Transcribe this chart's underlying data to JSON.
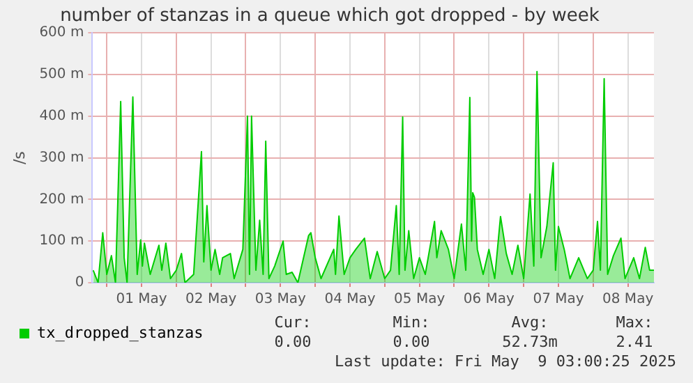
{
  "chart_data": {
    "type": "area",
    "title": "number of stanzas in a queue which got dropped - by week",
    "ylabel": "/s",
    "x": [
      "2025-04-30T19:18",
      "2025-04-30T21:00",
      "2025-04-30T22:36",
      "2025-05-01T00:00",
      "2025-05-01T01:36",
      "2025-05-01T03:00",
      "2025-05-01T04:48",
      "2025-05-01T06:00",
      "2025-05-01T07:00",
      "2025-05-01T09:00",
      "2025-05-01T10:30",
      "2025-05-01T11:42",
      "2025-05-01T12:18",
      "2025-05-01T13:00",
      "2025-05-01T15:00",
      "2025-05-01T18:00",
      "2025-05-01T19:00",
      "2025-05-01T20:24",
      "2025-05-01T22:00",
      "2025-05-02T00:00",
      "2025-05-02T01:48",
      "2025-05-02T03:00",
      "2025-05-02T06:00",
      "2025-05-02T08:42",
      "2025-05-02T09:30",
      "2025-05-02T10:36",
      "2025-05-02T12:00",
      "2025-05-02T13:24",
      "2025-05-02T15:00",
      "2025-05-02T16:00",
      "2025-05-02T18:42",
      "2025-05-02T20:00",
      "2025-05-02T23:00",
      "2025-05-03T00:36",
      "2025-05-03T01:18",
      "2025-05-03T02:00",
      "2025-05-03T03:30",
      "2025-05-03T04:48",
      "2025-05-03T06:00",
      "2025-05-03T06:54",
      "2025-05-03T08:00",
      "2025-05-03T10:00",
      "2025-05-03T12:54",
      "2025-05-03T14:00",
      "2025-05-03T16:00",
      "2025-05-03T18:00",
      "2025-05-03T21:42",
      "2025-05-03T22:30",
      "2025-05-04T00:00",
      "2025-05-04T02:00",
      "2025-05-04T06:24",
      "2025-05-04T07:00",
      "2025-05-04T08:12",
      "2025-05-04T10:00",
      "2025-05-04T12:00",
      "2025-05-04T14:00",
      "2025-05-04T17:00",
      "2025-05-04T19:00",
      "2025-05-04T21:24",
      "2025-05-05T00:00",
      "2025-05-05T02:00",
      "2025-05-05T04:00",
      "2025-05-05T05:00",
      "2025-05-05T06:12",
      "2025-05-05T07:00",
      "2025-05-05T08:18",
      "2025-05-05T10:00",
      "2025-05-05T12:00",
      "2025-05-05T14:00",
      "2025-05-05T17:12",
      "2025-05-05T18:00",
      "2025-05-05T19:30",
      "2025-05-05T22:00",
      "2025-05-06T00:00",
      "2025-05-06T02:30",
      "2025-05-06T04:00",
      "2025-05-06T05:24",
      "2025-05-06T06:00",
      "2025-05-06T06:24",
      "2025-05-06T07:00",
      "2025-05-06T08:00",
      "2025-05-06T10:00",
      "2025-05-06T12:00",
      "2025-05-06T14:00",
      "2025-05-06T16:00",
      "2025-05-06T18:00",
      "2025-05-06T20:00",
      "2025-05-06T22:00",
      "2025-05-07T00:00",
      "2025-05-07T02:12",
      "2025-05-07T03:30",
      "2025-05-07T04:36",
      "2025-05-07T06:00",
      "2025-05-07T08:00",
      "2025-05-07T10:12",
      "2025-05-07T11:00",
      "2025-05-07T12:00",
      "2025-05-07T14:00",
      "2025-05-07T16:00",
      "2025-05-07T19:00",
      "2025-05-07T22:00",
      "2025-05-08T00:00",
      "2025-05-08T01:30",
      "2025-05-08T02:30",
      "2025-05-08T03:48",
      "2025-05-08T05:00",
      "2025-05-08T07:00",
      "2025-05-08T09:36",
      "2025-05-08T11:00",
      "2025-05-08T14:00",
      "2025-05-08T16:00",
      "2025-05-08T18:00",
      "2025-05-08T19:30",
      "2025-05-08T21:00"
    ],
    "series": [
      {
        "name": "tx_dropped_stanzas",
        "color": "#00cc00",
        "values": [
          30,
          0,
          120,
          20,
          65,
          0,
          435,
          60,
          0,
          446,
          20,
          103,
          40,
          95,
          20,
          90,
          30,
          95,
          10,
          30,
          70,
          0,
          20,
          315,
          50,
          185,
          30,
          80,
          20,
          60,
          70,
          10,
          80,
          400,
          20,
          400,
          30,
          150,
          20,
          340,
          10,
          40,
          100,
          20,
          25,
          0,
          113,
          120,
          60,
          10,
          80,
          20,
          160,
          20,
          60,
          80,
          107,
          10,
          75,
          10,
          30,
          185,
          20,
          398,
          30,
          125,
          10,
          60,
          20,
          147,
          60,
          125,
          80,
          10,
          141,
          30,
          445,
          100,
          216,
          205,
          80,
          20,
          80,
          10,
          159,
          70,
          20,
          90,
          10,
          213,
          40,
          507,
          60,
          135,
          288,
          30,
          135,
          80,
          10,
          60,
          10,
          30,
          147,
          30,
          490,
          20,
          65,
          107,
          10,
          60,
          10,
          85,
          30,
          30
        ]
      }
    ],
    "xlim": [
      "2025-04-30T19:00",
      "2025-05-08T21:00"
    ],
    "xticks": [
      {
        "value": "2025-05-01",
        "label": null
      },
      {
        "value": "2025-05-01T12:00",
        "label": "01 May"
      },
      {
        "value": "2025-05-02",
        "label": null
      },
      {
        "value": "2025-05-02T12:00",
        "label": "02 May"
      },
      {
        "value": "2025-05-03",
        "label": null
      },
      {
        "value": "2025-05-03T12:00",
        "label": "03 May"
      },
      {
        "value": "2025-05-04",
        "label": null
      },
      {
        "value": "2025-05-04T12:00",
        "label": "04 May"
      },
      {
        "value": "2025-05-05",
        "label": null
      },
      {
        "value": "2025-05-05T12:00",
        "label": "05 May"
      },
      {
        "value": "2025-05-06",
        "label": null
      },
      {
        "value": "2025-05-06T12:00",
        "label": "06 May"
      },
      {
        "value": "2025-05-07",
        "label": null
      },
      {
        "value": "2025-05-07T12:00",
        "label": "07 May"
      },
      {
        "value": "2025-05-08",
        "label": null
      },
      {
        "value": "2025-05-08T12:00",
        "label": "08 May"
      }
    ],
    "ylim": [
      0,
      600
    ],
    "yticks": [
      {
        "value": 0,
        "label": "0"
      },
      {
        "value": 100,
        "label": "100 m"
      },
      {
        "value": 200,
        "label": "200 m"
      },
      {
        "value": 300,
        "label": "300 m"
      },
      {
        "value": 400,
        "label": "400 m"
      },
      {
        "value": 500,
        "label": "500 m"
      },
      {
        "value": 600,
        "label": "600 m"
      }
    ],
    "grid": true,
    "legend": "bottom left",
    "marker": "none",
    "line_style": "solid",
    "annotations": [
      "Cur:",
      "Min:",
      "Avg:",
      "Max:",
      "0.00",
      "0.00",
      "52.73m",
      "2.41",
      "Last update: Fri May  9 03:00:25 2025"
    ]
  }
}
